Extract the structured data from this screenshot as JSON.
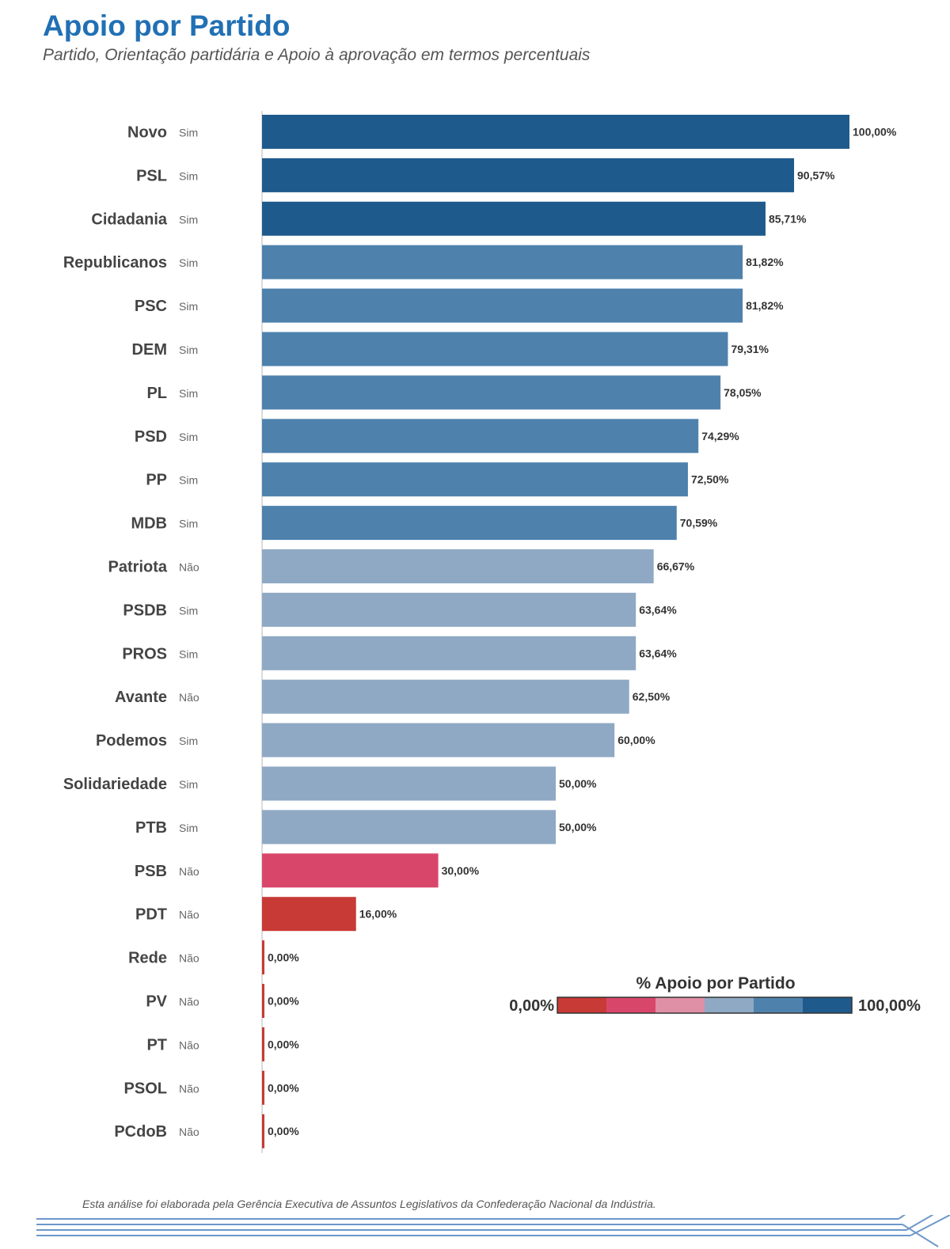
{
  "header": {
    "title": "Apoio por Partido",
    "subtitle": "Partido, Orientação partidária e Apoio à aprovação em termos percentuais"
  },
  "chart_data": {
    "type": "bar",
    "orientation": "horizontal",
    "title": "Apoio por Partido",
    "subtitle": "Partido, Orientação partidária e Apoio à aprovação em termos percentuais",
    "xlim": [
      0,
      100
    ],
    "grid": false,
    "categories": [
      "Novo",
      "PSL",
      "Cidadania",
      "Republicanos",
      "PSC",
      "DEM",
      "PL",
      "PSD",
      "PP",
      "MDB",
      "Patriota",
      "PSDB",
      "PROS",
      "Avante",
      "Podemos",
      "Solidariedade",
      "PTB",
      "PSB",
      "PDT",
      "Rede",
      "PV",
      "PT",
      "PSOL",
      "PCdoB"
    ],
    "orientation_labels": [
      "Sim",
      "Sim",
      "Sim",
      "Sim",
      "Sim",
      "Sim",
      "Sim",
      "Sim",
      "Sim",
      "Sim",
      "Não",
      "Sim",
      "Sim",
      "Não",
      "Sim",
      "Sim",
      "Sim",
      "Não",
      "Não",
      "Não",
      "Não",
      "Não",
      "Não",
      "Não"
    ],
    "values": [
      100.0,
      90.57,
      85.71,
      81.82,
      81.82,
      79.31,
      78.05,
      74.29,
      72.5,
      70.59,
      66.67,
      63.64,
      63.64,
      62.5,
      60.0,
      50.0,
      50.0,
      30.0,
      16.0,
      0.0,
      0.0,
      0.0,
      0.0,
      0.0
    ],
    "value_labels": [
      "100,00%",
      "90,57%",
      "85,71%",
      "81,82%",
      "81,82%",
      "79,31%",
      "78,05%",
      "74,29%",
      "72,50%",
      "70,59%",
      "66,67%",
      "63,64%",
      "63,64%",
      "62,50%",
      "60,00%",
      "50,00%",
      "50,00%",
      "30,00%",
      "16,00%",
      "0,00%",
      "0,00%",
      "0,00%",
      "0,00%",
      "0,00%"
    ],
    "legend": {
      "title": "% Apoio por Partido",
      "min_label": "0,00%",
      "max_label": "100,00%",
      "placement": "right",
      "colors": [
        "#c83a35",
        "#d8476a",
        "#df8fa6",
        "#8fa9c4",
        "#4e82ad",
        "#1f5a8c"
      ]
    }
  },
  "colors": {
    "title": "#2170b4",
    "bar_dark": "#1f5a8c",
    "bar_mid": "#4e82ad",
    "bar_light": "#8fa9c4",
    "bar_pink": "#d8476a",
    "bar_red": "#c83a35",
    "footer_lines": "#6d98c9"
  },
  "footer": {
    "note": "Esta análise foi elaborada pela Gerência Executiva de Assuntos Legislativos da Confederação Nacional da Indústria."
  }
}
